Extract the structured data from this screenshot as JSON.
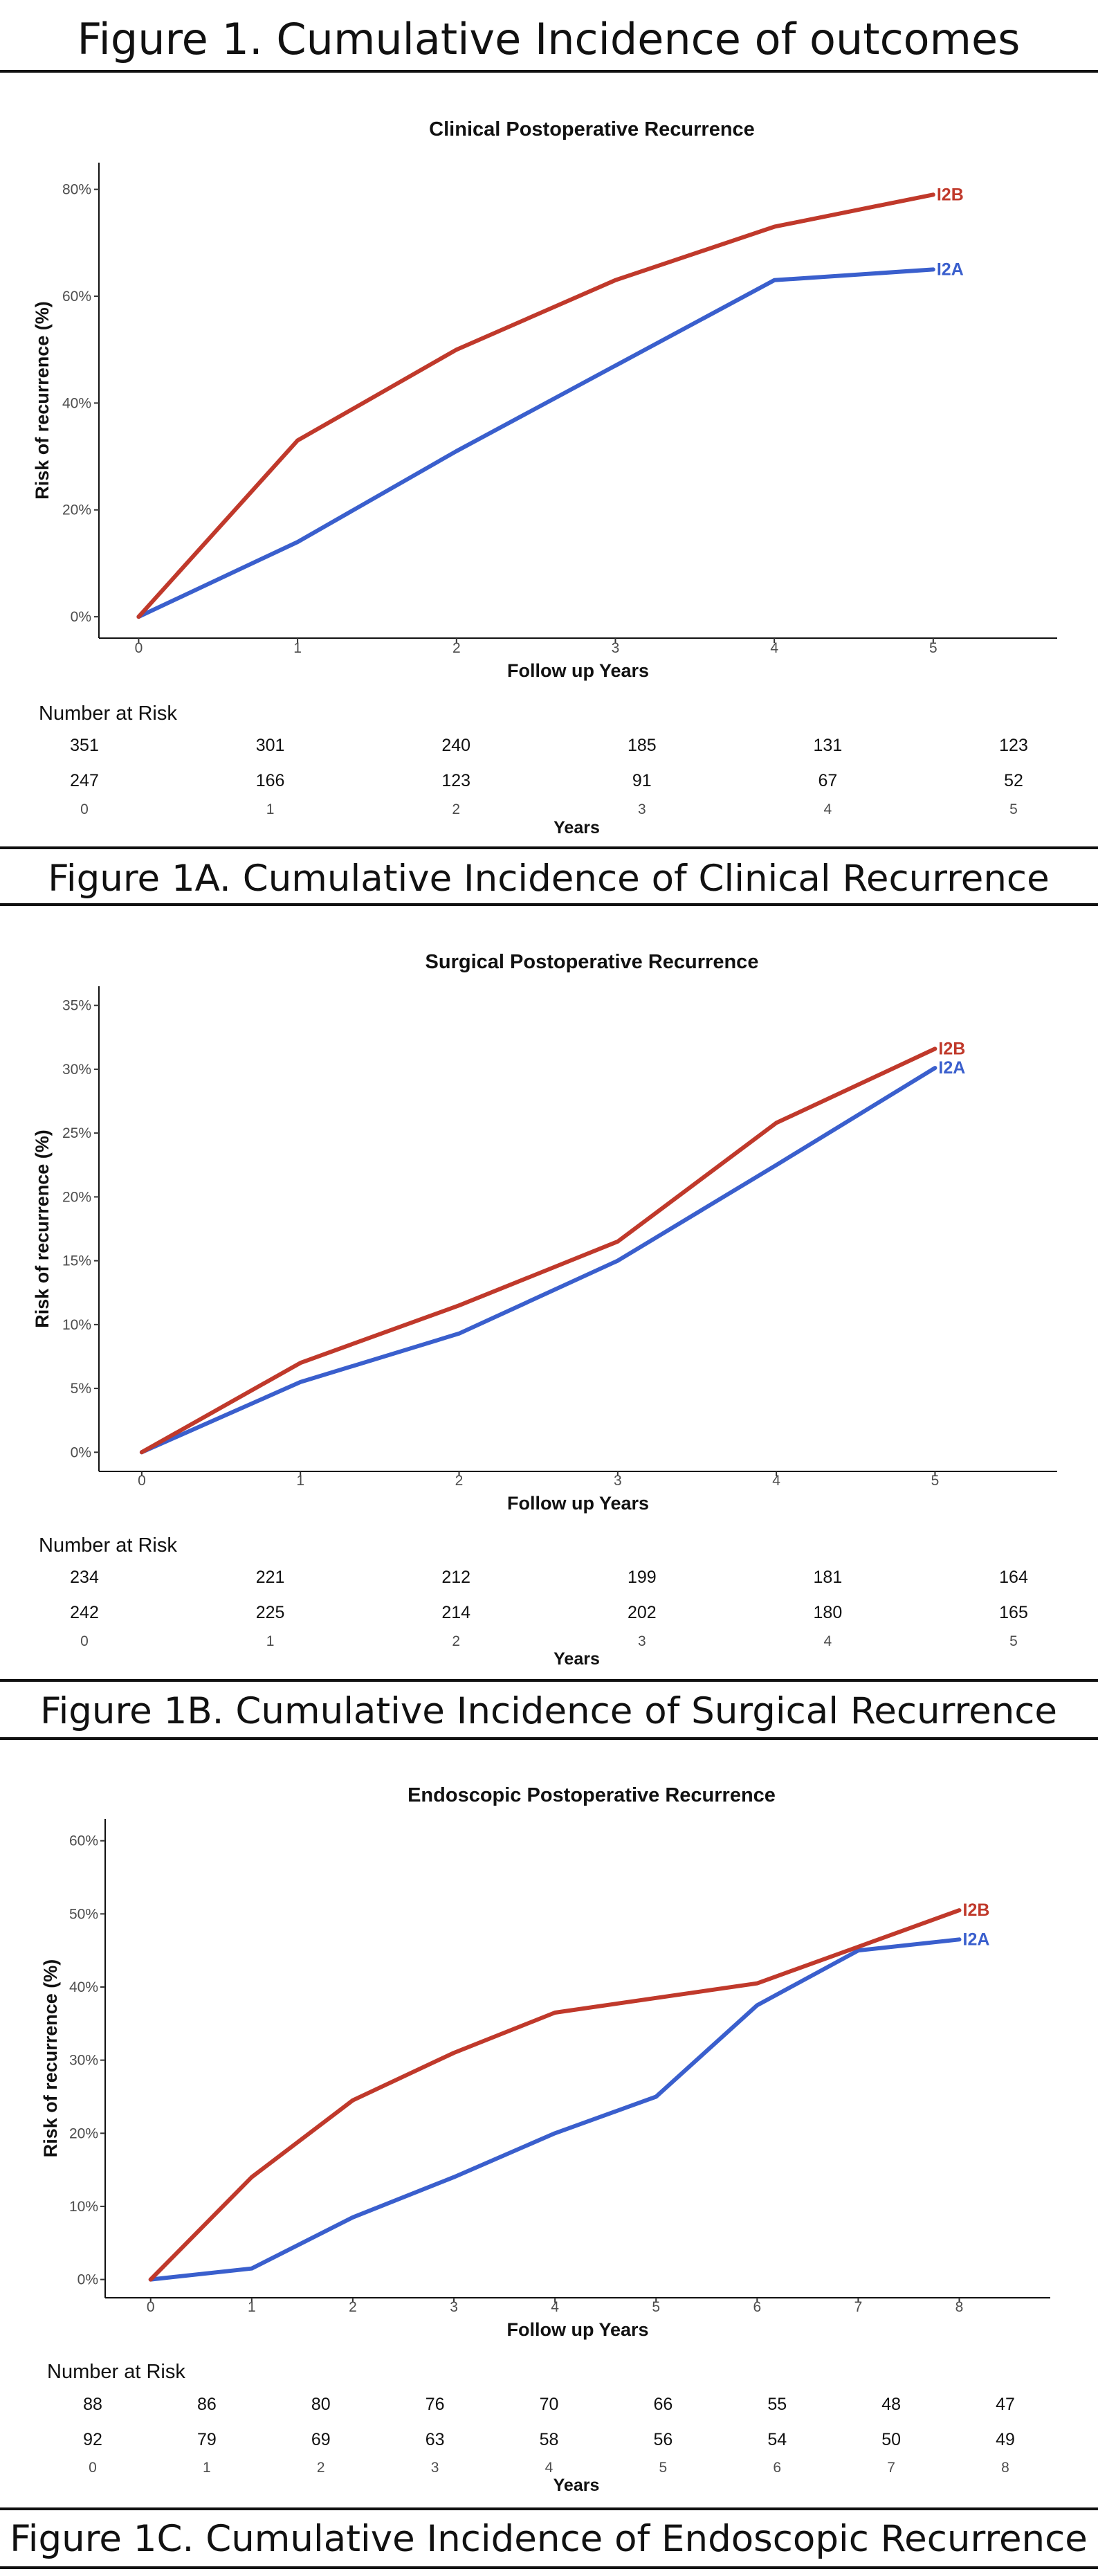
{
  "figure_title": "Figure 1. Cumulative Incidence of outcomes",
  "risk_table_title": "Number at Risk",
  "colors": {
    "I2B": "#c0392b",
    "I2A": "#3a5fcd"
  },
  "chart_data": [
    {
      "type": "line",
      "title": "Clinical Postoperative Recurrence",
      "xlabel": "Follow up Years",
      "ylabel": "Risk of recurrence (%)",
      "x": [
        0,
        1,
        2,
        3,
        4,
        5
      ],
      "xlim": [
        -0.25,
        5.78
      ],
      "ylim": [
        -4,
        85
      ],
      "yticks": [
        0,
        20,
        40,
        60,
        80
      ],
      "ytick_labels": [
        "0%",
        "20%",
        "40%",
        "60%",
        "80%"
      ],
      "series": [
        {
          "name": "I2B",
          "values": [
            0,
            33,
            50,
            63,
            73,
            79
          ]
        },
        {
          "name": "I2A",
          "values": [
            0,
            14,
            31,
            47,
            63,
            65
          ]
        }
      ],
      "risk_table": {
        "x_label": "Years",
        "times": [
          "0",
          "1",
          "2",
          "3",
          "4",
          "5"
        ],
        "rows": [
          [
            "351",
            "301",
            "240",
            "185",
            "131",
            "123"
          ],
          [
            "247",
            "166",
            "123",
            "91",
            "67",
            "52"
          ]
        ]
      },
      "caption": "Figure 1A. Cumulative Incidence of Clinical Recurrence"
    },
    {
      "type": "line",
      "title": "Surgical Postoperative Recurrence",
      "xlabel": "Follow up Years",
      "ylabel": "Risk of recurrence (%)",
      "x": [
        0,
        1,
        2,
        3,
        4,
        5
      ],
      "xlim": [
        -0.27,
        5.77
      ],
      "ylim": [
        -1.5,
        36.5
      ],
      "yticks": [
        0,
        5,
        10,
        15,
        20,
        25,
        30,
        35
      ],
      "ytick_labels": [
        "0%",
        "5%",
        "10%",
        "15%",
        "20%",
        "25%",
        "30%",
        "35%"
      ],
      "series": [
        {
          "name": "I2B",
          "values": [
            0,
            7,
            11.5,
            16.5,
            25.8,
            31.6
          ]
        },
        {
          "name": "I2A",
          "values": [
            0,
            5.5,
            9.3,
            15,
            22.5,
            30.1
          ]
        }
      ],
      "risk_table": {
        "x_label": "Years",
        "times": [
          "0",
          "1",
          "2",
          "3",
          "4",
          "5"
        ],
        "rows": [
          [
            "234",
            "221",
            "212",
            "199",
            "181",
            "164"
          ],
          [
            "242",
            "225",
            "214",
            "202",
            "180",
            "165"
          ]
        ]
      },
      "caption": "Figure 1B. Cumulative Incidence of Surgical Recurrence"
    },
    {
      "type": "line",
      "title": "Endoscopic Postoperative Recurrence",
      "xlabel": "Follow up Years",
      "ylabel": "Risk of recurrence (%)",
      "x": [
        0,
        1,
        2,
        3,
        4,
        5,
        6,
        7,
        8
      ],
      "xlim": [
        -0.45,
        8.9
      ],
      "ylim": [
        -2.5,
        63
      ],
      "yticks": [
        0,
        10,
        20,
        30,
        40,
        50,
        60
      ],
      "ytick_labels": [
        "0%",
        "10%",
        "20%",
        "30%",
        "40%",
        "50%",
        "60%"
      ],
      "series": [
        {
          "name": "I2B",
          "values": [
            0,
            14,
            24.5,
            31,
            36.5,
            38.5,
            40.5,
            45.5,
            50.5
          ]
        },
        {
          "name": "I2A",
          "values": [
            0,
            1.5,
            8.5,
            14,
            20,
            25,
            37.5,
            45,
            46.5
          ]
        }
      ],
      "risk_table": {
        "x_label": "Years",
        "times": [
          "0",
          "1",
          "2",
          "3",
          "4",
          "5",
          "6",
          "7",
          "8"
        ],
        "rows": [
          [
            "88",
            "86",
            "80",
            "76",
            "70",
            "66",
            "55",
            "48",
            "47"
          ],
          [
            "92",
            "79",
            "69",
            "63",
            "58",
            "56",
            "54",
            "50",
            "49"
          ]
        ]
      },
      "caption": "Figure 1C. Cumulative Incidence of Endoscopic Recurrence"
    }
  ]
}
